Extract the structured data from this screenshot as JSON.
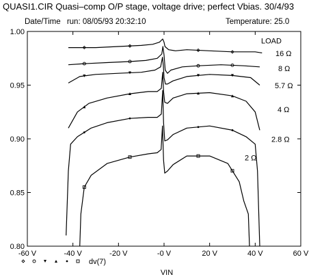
{
  "header": {
    "title": "QUASI1.CIR Quasi–comp O/P stage, voltage drive; perfect Vbias. 30/4/93",
    "date_label": "Date/Time",
    "date_value": "run: 08/05/93  20:32:10",
    "temperature": "Temperature: 25.0"
  },
  "chart_data": {
    "type": "line",
    "title": "",
    "xlabel": "VIN",
    "ylabel": "",
    "xlim": [
      -60,
      60
    ],
    "ylim": [
      0.8,
      1.0
    ],
    "x_ticks": [
      "-60 V",
      "-40 V",
      "-20 V",
      "-0 V",
      "20 V",
      "40 V",
      "60 V"
    ],
    "y_ticks": [
      "0.80",
      "0.85",
      "0.90",
      "0.95",
      "1.00"
    ],
    "legend_title": "LOAD",
    "legend_expression": "dv(7)",
    "grid": false,
    "series": [
      {
        "name": "16 Ω",
        "points": [
          [
            -42,
            0.985
          ],
          [
            -30,
            0.985
          ],
          [
            -20,
            0.986
          ],
          [
            -10,
            0.987
          ],
          [
            -5,
            0.988
          ],
          [
            -2,
            0.99
          ],
          [
            -0.6,
            0.993
          ],
          [
            0,
            0.99
          ],
          [
            0.4,
            0.986
          ],
          [
            2,
            0.983
          ],
          [
            5,
            0.982
          ],
          [
            10,
            0.983
          ],
          [
            20,
            0.982
          ],
          [
            30,
            0.981
          ],
          [
            40,
            0.981
          ],
          [
            43,
            0.98
          ]
        ]
      },
      {
        "name": "8 Ω",
        "points": [
          [
            -42,
            0.969
          ],
          [
            -35,
            0.97
          ],
          [
            -25,
            0.971
          ],
          [
            -15,
            0.972
          ],
          [
            -8,
            0.973
          ],
          [
            -3,
            0.975
          ],
          [
            -1,
            0.979
          ],
          [
            -0.5,
            0.986
          ],
          [
            0,
            0.978
          ],
          [
            0.5,
            0.964
          ],
          [
            1.5,
            0.961
          ],
          [
            3,
            0.964
          ],
          [
            8,
            0.967
          ],
          [
            15,
            0.968
          ],
          [
            25,
            0.969
          ],
          [
            35,
            0.968
          ],
          [
            42,
            0.967
          ]
        ]
      },
      {
        "name": "5.7 Ω",
        "points": [
          [
            -42,
            0.952
          ],
          [
            -37,
            0.958
          ],
          [
            -30,
            0.96
          ],
          [
            -20,
            0.961
          ],
          [
            -10,
            0.962
          ],
          [
            -4,
            0.964
          ],
          [
            -1.5,
            0.967
          ],
          [
            -0.7,
            0.976
          ],
          [
            -0.3,
            0.968
          ],
          [
            0,
            0.957
          ],
          [
            0.6,
            0.951
          ],
          [
            1.5,
            0.951
          ],
          [
            4,
            0.954
          ],
          [
            10,
            0.958
          ],
          [
            20,
            0.96
          ],
          [
            30,
            0.959
          ],
          [
            38,
            0.957
          ],
          [
            42,
            0.95
          ]
        ]
      },
      {
        "name": "4 Ω",
        "points": [
          [
            -42,
            0.91
          ],
          [
            -38,
            0.925
          ],
          [
            -33,
            0.933
          ],
          [
            -25,
            0.938
          ],
          [
            -15,
            0.942
          ],
          [
            -7,
            0.944
          ],
          [
            -3,
            0.944
          ],
          [
            -1.2,
            0.947
          ],
          [
            -0.6,
            0.962
          ],
          [
            -0.2,
            0.944
          ],
          [
            0.3,
            0.934
          ],
          [
            1.5,
            0.933
          ],
          [
            4,
            0.938
          ],
          [
            10,
            0.942
          ],
          [
            20,
            0.943
          ],
          [
            30,
            0.94
          ],
          [
            36,
            0.935
          ],
          [
            40,
            0.925
          ],
          [
            42,
            0.908
          ]
        ]
      },
      {
        "name": "2.8 Ω",
        "points": [
          [
            -43,
            0.81
          ],
          [
            -42,
            0.87
          ],
          [
            -41,
            0.895
          ],
          [
            -38,
            0.902
          ],
          [
            -32,
            0.91
          ],
          [
            -25,
            0.915
          ],
          [
            -15,
            0.919
          ],
          [
            -7,
            0.92
          ],
          [
            -3,
            0.92
          ],
          [
            -1.2,
            0.923
          ],
          [
            -0.6,
            0.945
          ],
          [
            -0.2,
            0.915
          ],
          [
            0.3,
            0.898
          ],
          [
            1.5,
            0.899
          ],
          [
            4,
            0.904
          ],
          [
            10,
            0.91
          ],
          [
            20,
            0.912
          ],
          [
            30,
            0.908
          ],
          [
            36,
            0.902
          ],
          [
            40,
            0.895
          ],
          [
            41,
            0.87
          ],
          [
            42,
            0.8
          ]
        ]
      },
      {
        "name": "2 Ω",
        "points": [
          [
            -37,
            0.8
          ],
          [
            -36.5,
            0.83
          ],
          [
            -35,
            0.855
          ],
          [
            -32,
            0.866
          ],
          [
            -25,
            0.877
          ],
          [
            -15,
            0.883
          ],
          [
            -7,
            0.886
          ],
          [
            -3,
            0.887
          ],
          [
            -1.3,
            0.89
          ],
          [
            -0.7,
            0.912
          ],
          [
            -0.2,
            0.88
          ],
          [
            0.3,
            0.868
          ],
          [
            1.5,
            0.87
          ],
          [
            4,
            0.876
          ],
          [
            10,
            0.884
          ],
          [
            20,
            0.884
          ],
          [
            28,
            0.877
          ],
          [
            33,
            0.86
          ],
          [
            35,
            0.842
          ],
          [
            37,
            0.83
          ],
          [
            37.5,
            0.8
          ]
        ]
      }
    ]
  }
}
